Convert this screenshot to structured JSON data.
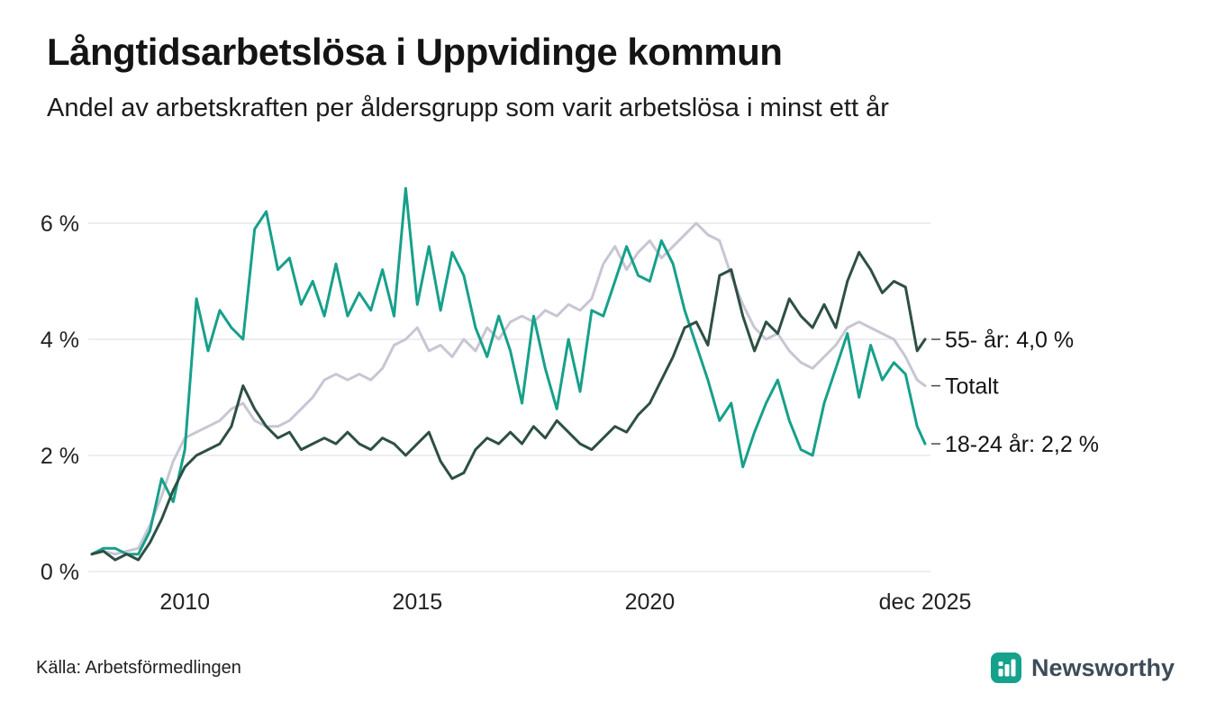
{
  "title": "Långtidsarbetslösa i Uppvidinge kommun",
  "subtitle": "Andel av arbetskraften per åldersgrupp som varit arbetslösa i minst ett år",
  "source": "Källa: Arbetsförmedlingen",
  "brand": {
    "name": "Newsworthy",
    "icon_color": "#14a28c",
    "text_color": "#3e4c59"
  },
  "chart_data": {
    "type": "line",
    "title": "Långtidsarbetslösa i Uppvidinge kommun",
    "xlabel": "",
    "ylabel": "",
    "grid": "horizontal",
    "legend_position": "right-end-labels",
    "xlim": [
      2008,
      2025.92
    ],
    "ylim": [
      0,
      6.9
    ],
    "yticks": [
      {
        "value": 0,
        "label": "0 %"
      },
      {
        "value": 2,
        "label": "2 %"
      },
      {
        "value": 4,
        "label": "4 %"
      },
      {
        "value": 6,
        "label": "6 %"
      }
    ],
    "xticks": [
      {
        "value": 2010,
        "label": "2010"
      },
      {
        "value": 2015,
        "label": "2015"
      },
      {
        "value": 2020,
        "label": "2020"
      },
      {
        "value": 2025.92,
        "label": "dec 2025"
      }
    ],
    "x": [
      2008.0,
      2008.25,
      2008.5,
      2008.75,
      2009.0,
      2009.25,
      2009.5,
      2009.75,
      2010.0,
      2010.25,
      2010.5,
      2010.75,
      2011.0,
      2011.25,
      2011.5,
      2011.75,
      2012.0,
      2012.25,
      2012.5,
      2012.75,
      2013.0,
      2013.25,
      2013.5,
      2013.75,
      2014.0,
      2014.25,
      2014.5,
      2014.75,
      2015.0,
      2015.25,
      2015.5,
      2015.75,
      2016.0,
      2016.25,
      2016.5,
      2016.75,
      2017.0,
      2017.25,
      2017.5,
      2017.75,
      2018.0,
      2018.25,
      2018.5,
      2018.75,
      2019.0,
      2019.25,
      2019.5,
      2019.75,
      2020.0,
      2020.25,
      2020.5,
      2020.75,
      2021.0,
      2021.25,
      2021.5,
      2021.75,
      2022.0,
      2022.25,
      2022.5,
      2022.75,
      2023.0,
      2023.25,
      2023.5,
      2023.75,
      2024.0,
      2024.25,
      2024.5,
      2024.75,
      2025.0,
      2025.25,
      2025.5,
      2025.75,
      2025.92
    ],
    "series": [
      {
        "id": "total",
        "name": "Totalt",
        "label": "Totalt",
        "color": "#c7c6d3",
        "values": [
          0.3,
          0.35,
          0.3,
          0.35,
          0.4,
          0.8,
          1.3,
          1.9,
          2.3,
          2.4,
          2.5,
          2.6,
          2.8,
          2.9,
          2.6,
          2.5,
          2.5,
          2.6,
          2.8,
          3.0,
          3.3,
          3.4,
          3.3,
          3.4,
          3.3,
          3.5,
          3.9,
          4.0,
          4.2,
          3.8,
          3.9,
          3.7,
          4.0,
          3.8,
          4.2,
          4.0,
          4.3,
          4.4,
          4.3,
          4.5,
          4.4,
          4.6,
          4.5,
          4.7,
          5.3,
          5.6,
          5.2,
          5.5,
          5.7,
          5.4,
          5.6,
          5.8,
          6.0,
          5.8,
          5.7,
          5.1,
          4.6,
          4.2,
          4.0,
          4.1,
          3.8,
          3.6,
          3.5,
          3.7,
          3.9,
          4.2,
          4.3,
          4.2,
          4.1,
          4.0,
          3.7,
          3.3,
          3.2
        ]
      },
      {
        "id": "age-18-24",
        "name": "18-24 år",
        "label": "18-24 år: 2,2 %",
        "color": "#17a08b",
        "values": [
          0.3,
          0.4,
          0.4,
          0.3,
          0.3,
          0.7,
          1.6,
          1.2,
          2.1,
          4.7,
          3.8,
          4.5,
          4.2,
          4.0,
          5.9,
          6.2,
          5.2,
          5.4,
          4.6,
          5.0,
          4.4,
          5.3,
          4.4,
          4.8,
          4.5,
          5.2,
          4.4,
          6.6,
          4.6,
          5.6,
          4.5,
          5.5,
          5.1,
          4.2,
          3.7,
          4.4,
          3.8,
          2.9,
          4.4,
          3.5,
          2.8,
          4.0,
          3.1,
          4.5,
          4.4,
          5.0,
          5.6,
          5.1,
          5.0,
          5.7,
          5.3,
          4.5,
          3.9,
          3.3,
          2.6,
          2.9,
          1.8,
          2.4,
          2.9,
          3.3,
          2.6,
          2.1,
          2.0,
          2.9,
          3.5,
          4.1,
          3.0,
          3.9,
          3.3,
          3.6,
          3.4,
          2.5,
          2.2
        ]
      },
      {
        "id": "age-55-plus",
        "name": "55- år",
        "label": "55- år: 4,0 %",
        "color": "#2e4f44",
        "values": [
          0.3,
          0.35,
          0.2,
          0.3,
          0.2,
          0.5,
          0.9,
          1.4,
          1.8,
          2.0,
          2.1,
          2.2,
          2.5,
          3.2,
          2.8,
          2.5,
          2.3,
          2.4,
          2.1,
          2.2,
          2.3,
          2.2,
          2.4,
          2.2,
          2.1,
          2.3,
          2.2,
          2.0,
          2.2,
          2.4,
          1.9,
          1.6,
          1.7,
          2.1,
          2.3,
          2.2,
          2.4,
          2.2,
          2.5,
          2.3,
          2.6,
          2.4,
          2.2,
          2.1,
          2.3,
          2.5,
          2.4,
          2.7,
          2.9,
          3.3,
          3.7,
          4.2,
          4.3,
          3.9,
          5.1,
          5.2,
          4.4,
          3.8,
          4.3,
          4.1,
          4.7,
          4.4,
          4.2,
          4.6,
          4.2,
          5.0,
          5.5,
          5.2,
          4.8,
          5.0,
          4.9,
          3.8,
          4.0
        ]
      }
    ]
  }
}
